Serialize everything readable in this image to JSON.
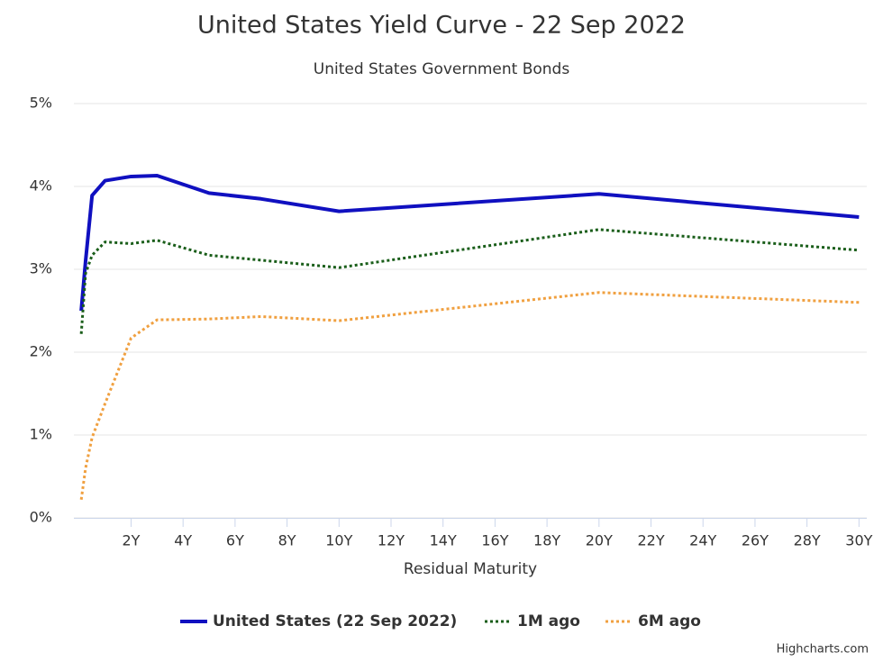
{
  "chart_data": {
    "type": "line",
    "title": "United States Yield Curve - 22 Sep 2022",
    "subtitle": "United States Government Bonds",
    "x_label": "Residual Maturity",
    "credits": "Highcharts.com",
    "x": [
      0.083,
      0.25,
      0.5,
      1,
      2,
      3,
      5,
      7,
      10,
      20,
      30
    ],
    "series": [
      {
        "name": "United States (22 Sep 2022)",
        "color": "#1010c0",
        "dash": "solid",
        "values": [
          2.5,
          3.1,
          3.89,
          4.07,
          4.12,
          4.13,
          3.92,
          3.85,
          3.7,
          3.91,
          3.63
        ]
      },
      {
        "name": "1M ago",
        "color": "#1a5e1a",
        "dash": "dot",
        "values": [
          2.22,
          2.95,
          3.17,
          3.33,
          3.31,
          3.35,
          3.17,
          3.11,
          3.02,
          3.48,
          3.23
        ]
      },
      {
        "name": "6M ago",
        "color": "#f0a040",
        "dash": "dot",
        "values": [
          0.22,
          0.6,
          0.97,
          1.38,
          2.17,
          2.39,
          2.4,
          2.43,
          2.38,
          2.72,
          2.6
        ]
      }
    ],
    "xlim": [
      -0.2,
      30.3
    ],
    "xticks": [
      {
        "value": 2,
        "label": "2Y"
      },
      {
        "value": 4,
        "label": "4Y"
      },
      {
        "value": 6,
        "label": "6Y"
      },
      {
        "value": 8,
        "label": "8Y"
      },
      {
        "value": 10,
        "label": "10Y"
      },
      {
        "value": 12,
        "label": "12Y"
      },
      {
        "value": 14,
        "label": "14Y"
      },
      {
        "value": 16,
        "label": "16Y"
      },
      {
        "value": 18,
        "label": "18Y"
      },
      {
        "value": 20,
        "label": "20Y"
      },
      {
        "value": 22,
        "label": "22Y"
      },
      {
        "value": 24,
        "label": "24Y"
      },
      {
        "value": 26,
        "label": "26Y"
      },
      {
        "value": 28,
        "label": "28Y"
      },
      {
        "value": 30,
        "label": "30Y"
      }
    ],
    "ylim": [
      0,
      5
    ],
    "yticks": [
      {
        "value": 0,
        "label": "0%"
      },
      {
        "value": 1,
        "label": "1%"
      },
      {
        "value": 2,
        "label": "2%"
      },
      {
        "value": 3,
        "label": "3%"
      },
      {
        "value": 4,
        "label": "4%"
      },
      {
        "value": 5,
        "label": "5%"
      }
    ],
    "grid": true
  }
}
